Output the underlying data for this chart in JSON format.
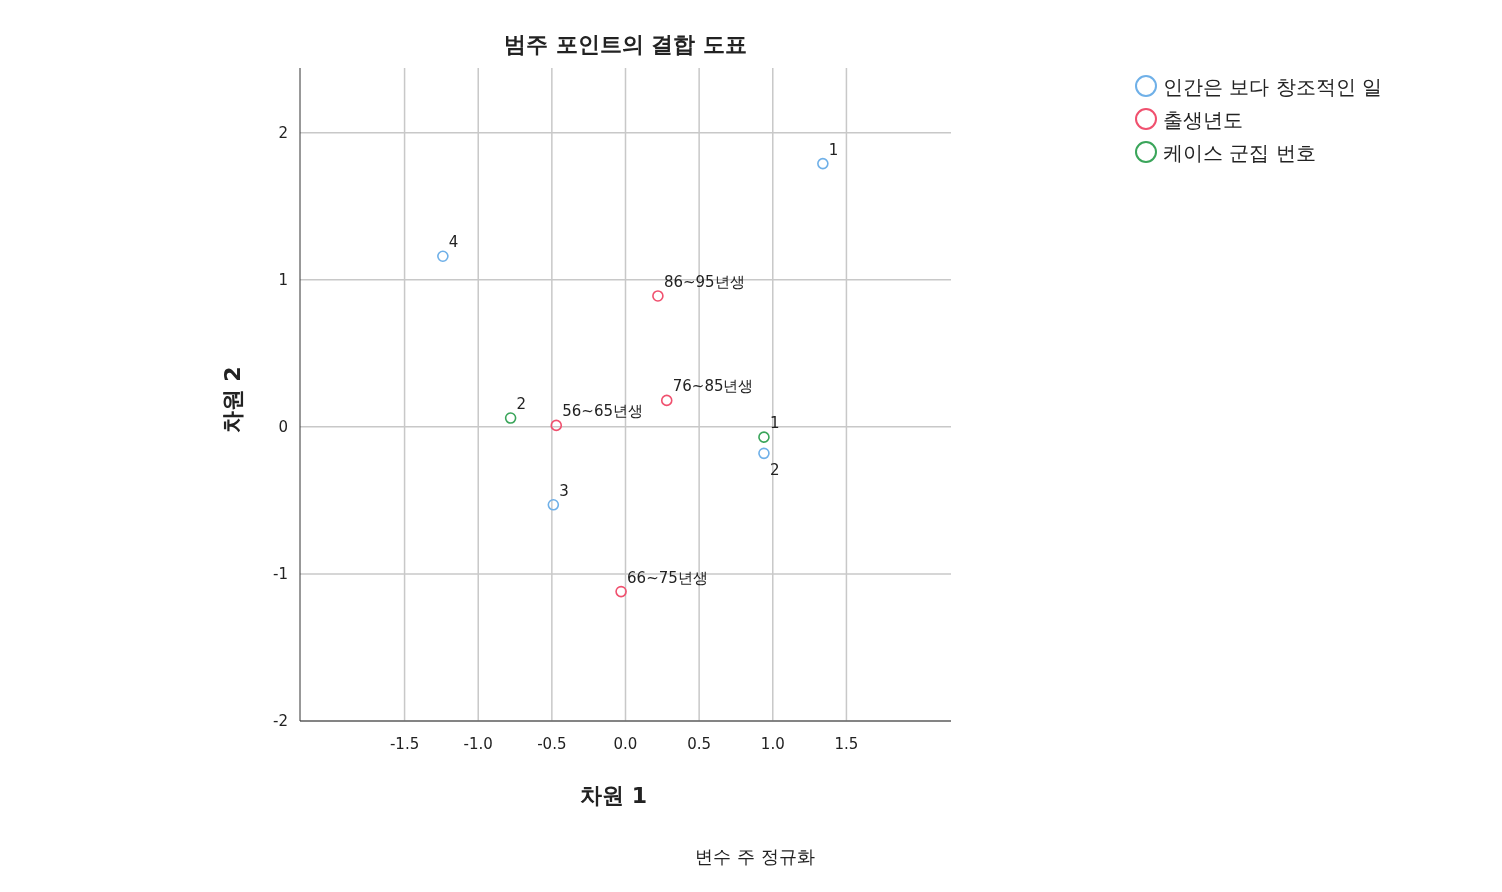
{
  "chart_data": {
    "type": "scatter",
    "title": "범주 포인트의 결합 도표",
    "xlabel": "차원 1",
    "ylabel": "차원 2",
    "annotations": [
      "변수 주 정규화",
      {
        "text": "1",
        "x": 1.34,
        "y": 1.79
      },
      {
        "text": "2",
        "x": 0.94,
        "y": -0.18
      },
      {
        "text": "3",
        "x": -0.49,
        "y": -0.53
      },
      {
        "text": "4",
        "x": -1.24,
        "y": 1.16
      },
      {
        "text": "56~65년생",
        "x": -0.47,
        "y": 0.01
      },
      {
        "text": "66~75년생",
        "x": -0.03,
        "y": -1.12
      },
      {
        "text": "76~85년생",
        "x": 0.28,
        "y": 0.18
      },
      {
        "text": "86~95년생",
        "x": 0.22,
        "y": 0.89
      },
      {
        "text": "1",
        "x": 0.94,
        "y": -0.07
      },
      {
        "text": "2",
        "x": -0.78,
        "y": 0.06
      }
    ],
    "xlim": [
      -2.21,
      2.21
    ],
    "ylim": [
      -2,
      2.44
    ],
    "xticks": [
      -1.5,
      {
        "value": -1,
        "label": "-1.0"
      },
      -0.5,
      {
        "value": 0,
        "label": "0.0"
      },
      0.5,
      {
        "value": 1,
        "label": "1.0"
      },
      1.5
    ],
    "yticks": [
      -2,
      -1,
      0,
      1,
      2
    ],
    "grid": true,
    "legend": "top right",
    "marker": "circle",
    "series": [
      {
        "name": "인간은 보다 창조적인 일",
        "color": "#6fb0e8",
        "x": [
          1.34,
          0.94,
          -0.49,
          -1.24
        ],
        "values": [
          1.79,
          -0.18,
          -0.53,
          1.16
        ]
      },
      {
        "name": "출생년도",
        "color": "#f0506e",
        "x": [
          -0.47,
          -0.03,
          0.28,
          0.22
        ],
        "values": [
          0.01,
          -1.12,
          0.18,
          0.89
        ]
      },
      {
        "name": "케이스 군집 번호",
        "color": "#3aa55a",
        "x": [
          0.94,
          -0.78
        ],
        "values": [
          -0.07,
          0.06
        ]
      }
    ]
  }
}
